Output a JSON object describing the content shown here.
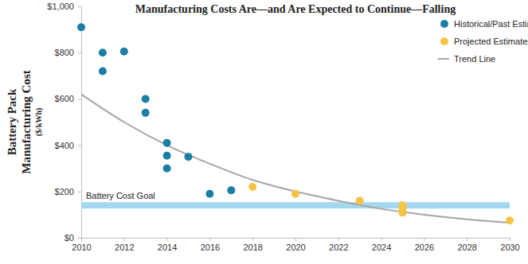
{
  "chart_data": {
    "type": "scatter",
    "title": "Manufacturing Costs Are—and Are Expected to Continue—Falling",
    "y_label": [
      "Battery Pack",
      "Manufacturing Cost",
      "($/kWh)"
    ],
    "xlim": [
      2010,
      2030
    ],
    "xticks": [
      2010,
      2012,
      2014,
      2016,
      2018,
      2020,
      2022,
      2024,
      2026,
      2028,
      2030
    ],
    "ylim": [
      0,
      1000
    ],
    "yticks": [
      {
        "value": 0,
        "label": "$0"
      },
      {
        "value": 200,
        "label": "$200"
      },
      {
        "value": 400,
        "label": "$400"
      },
      {
        "value": 600,
        "label": "$600"
      },
      {
        "value": 800,
        "label": "$800"
      },
      {
        "value": 1000,
        "label": "$1,000"
      }
    ],
    "grid": false,
    "legend": "top-right",
    "goal": {
      "label": "Battery Cost Goal",
      "value": 140,
      "color": "#a3d9ef"
    },
    "series": [
      {
        "name": "Historical/Past Estimates",
        "type": "scatter",
        "marker": "circle",
        "color": "#1a7ea5",
        "x": [
          2010,
          2011,
          2011,
          2012,
          2013,
          2013,
          2014,
          2014,
          2014,
          2015,
          2016,
          2017
        ],
        "values": [
          910,
          800,
          720,
          805,
          600,
          540,
          410,
          355,
          300,
          350,
          190,
          205
        ]
      },
      {
        "name": "Projected Estimates",
        "type": "scatter",
        "marker": "circle",
        "color": "#f6c343",
        "x": [
          2018,
          2020,
          2023,
          2025,
          2025,
          2025,
          2030
        ],
        "values": [
          220,
          190,
          160,
          140,
          125,
          108,
          75
        ]
      },
      {
        "name": "Trend Line",
        "type": "line",
        "line_style": "solid",
        "color": "#a5a5a5",
        "x": [
          2010,
          2012,
          2014,
          2016,
          2018,
          2020,
          2022,
          2024,
          2026,
          2028,
          2030
        ],
        "values": [
          620,
          500,
          400,
          320,
          250,
          200,
          160,
          125,
          100,
          80,
          65
        ]
      }
    ]
  }
}
